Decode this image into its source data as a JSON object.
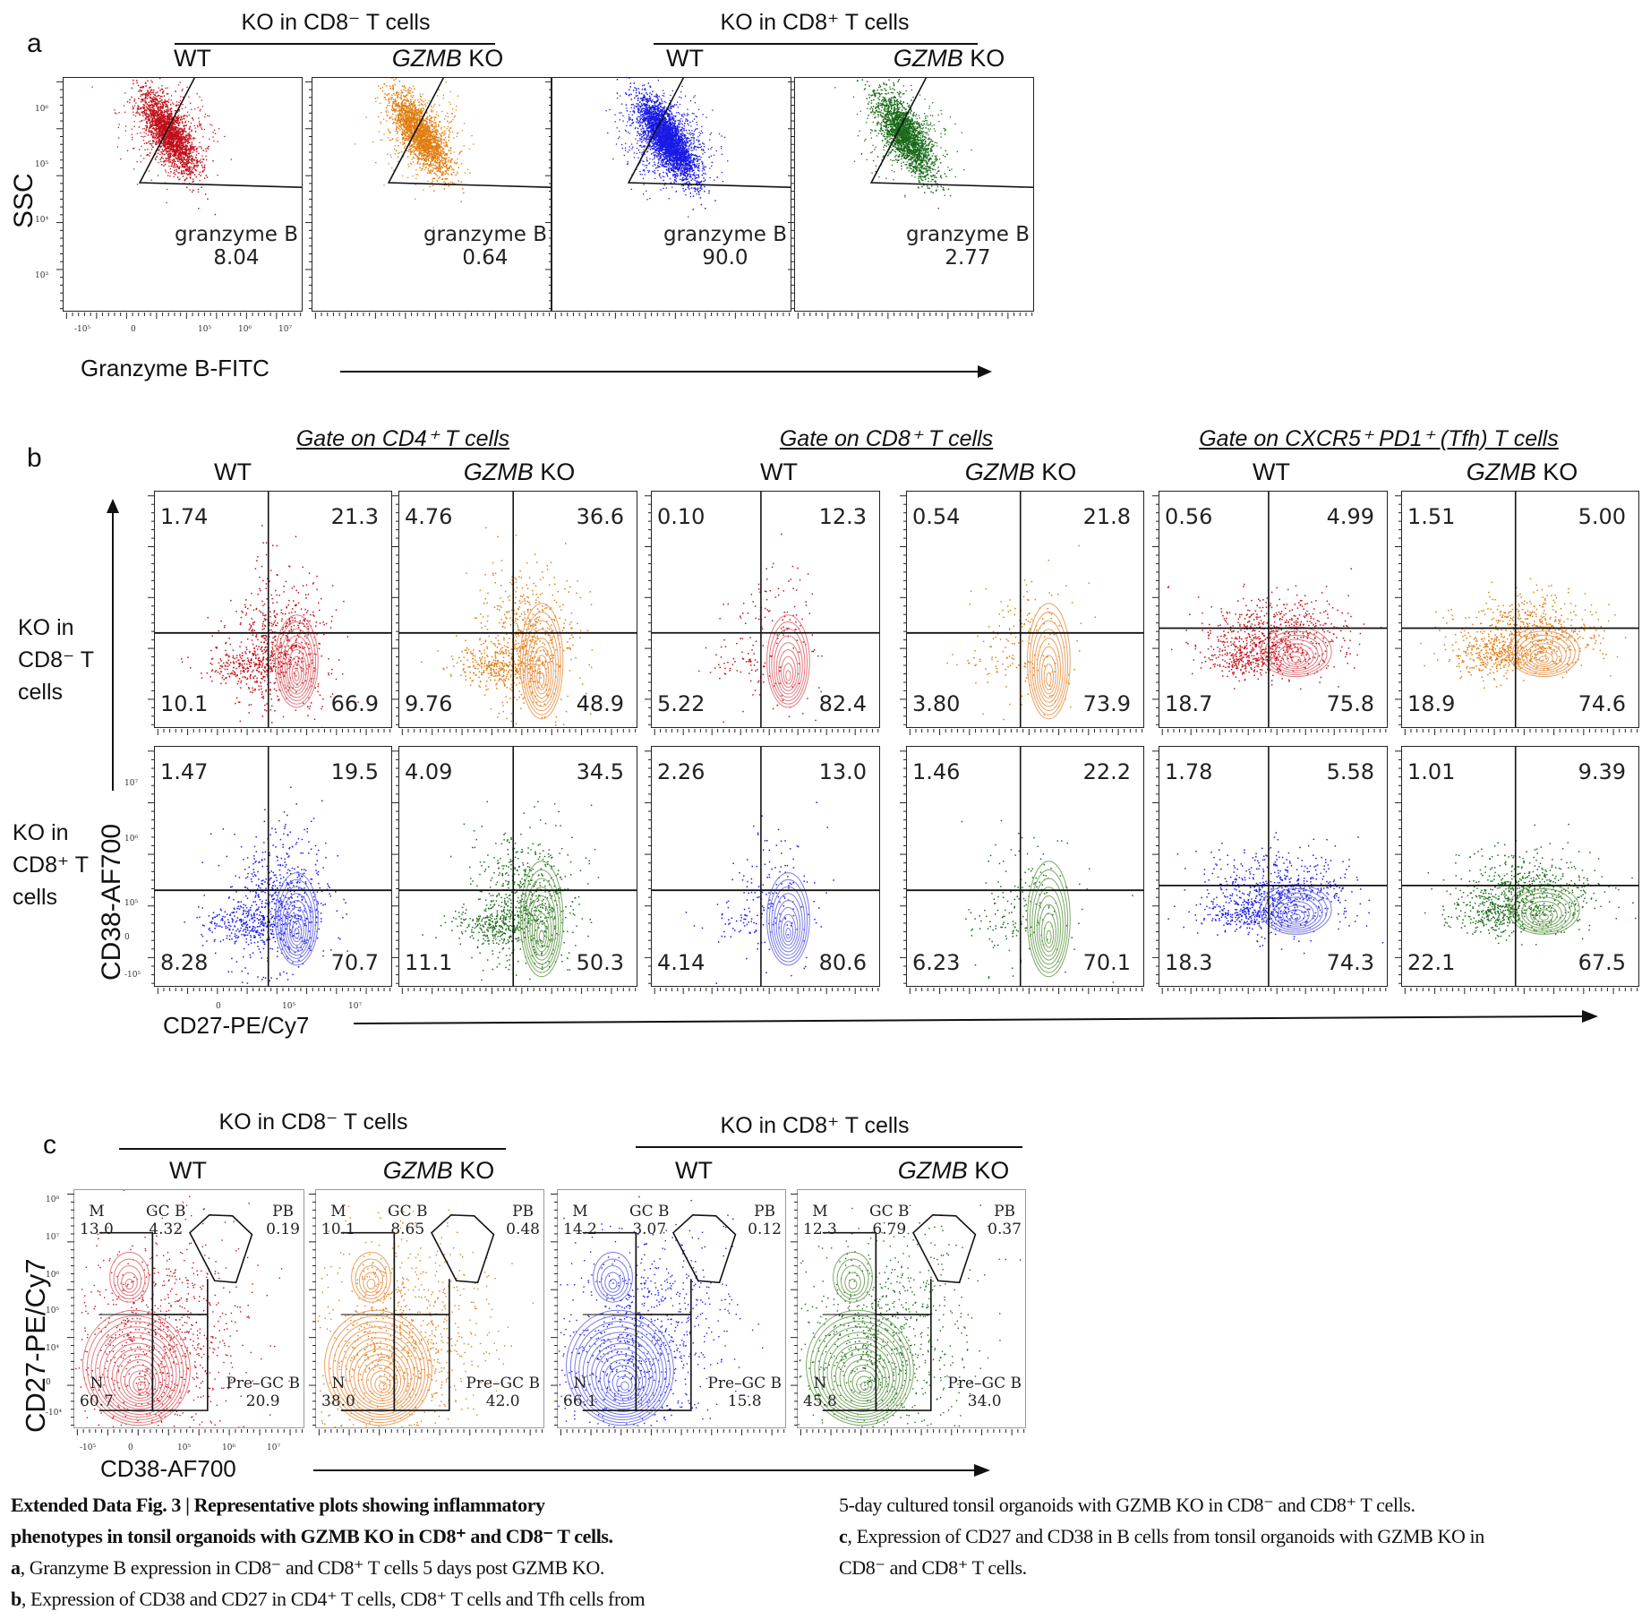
{
  "figure": {
    "caption": {
      "title": "Extended Data Fig. 3 | Representative plots showing inflammatory phenotypes in tonsil organoids with GZMB KO in CD8⁺ and CD8⁻ T cells.",
      "title_line1": "Extended Data Fig. 3 | Representative plots showing inflammatory",
      "title_line2": "phenotypes in tonsil organoids with GZMB KO in CD8⁺ and CD8⁻ T cells.",
      "a_letter": "a",
      "a_text": ", Granzyme B expression in CD8⁻ and CD8⁺ T cells 5 days post GZMB KO.",
      "b_letter": "b",
      "b_text_1": ", Expression of CD38 and CD27 in CD4⁺ T cells, CD8⁺ T cells and Tfh cells from",
      "b_text_2": "5-day cultured tonsil organoids with GZMB KO in CD8⁻ and CD8⁺ T cells.",
      "c_letter": "c",
      "c_text_1": ", Expression of CD27 and CD38 in B cells from tonsil organoids with GZMB KO in",
      "c_text_2": "CD8⁻ and CD8⁺ T cells."
    }
  },
  "colors": {
    "wt_cd8neg": "#c0101a",
    "ko_cd8neg": "#e07d10",
    "wt_cd8pos": "#1a1ae6",
    "ko_cd8pos": "#1a6b1a",
    "wt_cd8neg_contour": "#e07a80",
    "ko_cd8neg_contour": "#eaa060",
    "wt_cd8pos_contour": "#7a7ae8",
    "ko_cd8pos_contour": "#7aa864"
  },
  "panel_a": {
    "letter": "a",
    "groups": [
      {
        "title": "KO in CD8⁻ T cells"
      },
      {
        "title": "KO in CD8⁺ T cells"
      }
    ],
    "conditions": [
      "WT",
      "GZMB",
      "KO",
      "WT",
      "GZMB",
      "KO"
    ],
    "y_axis_label": "SSC",
    "x_axis_label": "Granzyme B-FITC",
    "y_ticks": [
      "10⁶",
      "10⁵",
      "10⁴",
      "10³"
    ],
    "x_ticks": [
      "-10⁵",
      "0",
      "10⁵",
      "10⁶",
      "10⁷"
    ],
    "gate_name": "granzyme B",
    "plots": [
      {
        "group": "KO in CD8- T cells",
        "condition": "WT",
        "gate": "granzyme B",
        "value": "8.04",
        "color": "#c0101a"
      },
      {
        "group": "KO in CD8- T cells",
        "condition": "GZMB KO",
        "gate": "granzyme B",
        "value": "0.64",
        "color": "#e07d10"
      },
      {
        "group": "KO in CD8+ T cells",
        "condition": "WT",
        "gate": "granzyme B",
        "value": "90.0",
        "color": "#1a1ae6"
      },
      {
        "group": "KO in CD8+ T cells",
        "condition": "GZMB KO",
        "gate": "granzyme B",
        "value": "2.77",
        "color": "#1a6b1a"
      }
    ]
  },
  "panel_b": {
    "letter": "b",
    "gates": [
      {
        "title": "Gate on CD4⁺ T cells"
      },
      {
        "title": "Gate on CD8⁺ T cells"
      },
      {
        "title": "Gate on CXCR5⁺ PD1⁺ (Tfh) T cells"
      }
    ],
    "conditions": [
      "WT",
      "GZMB",
      "KO"
    ],
    "row_labels": [
      {
        "line1": "KO in",
        "line2": "CD8⁻ T",
        "line3": "cells"
      },
      {
        "line1": "KO in",
        "line2": "CD8⁺ T",
        "line3": "cells"
      }
    ],
    "y_axis_label": "CD38-AF700",
    "x_axis_label": "CD27-PE/Cy7",
    "y_ticks": [
      "10⁷",
      "10⁶",
      "10⁵",
      "0",
      "-10⁵"
    ],
    "x_ticks": [
      "0",
      "10⁵",
      "10⁷"
    ],
    "rows": [
      {
        "label": "KO in CD8- T cells",
        "plots": [
          {
            "gate": "CD4+",
            "condition": "WT",
            "q": {
              "ul": "1.74",
              "ur": "21.3",
              "ll": "10.1",
              "lr": "66.9"
            }
          },
          {
            "gate": "CD4+",
            "condition": "GZMB KO",
            "q": {
              "ul": "4.76",
              "ur": "36.6",
              "ll": "9.76",
              "lr": "48.9"
            }
          },
          {
            "gate": "CD8+",
            "condition": "WT",
            "q": {
              "ul": "0.10",
              "ur": "12.3",
              "ll": "5.22",
              "lr": "82.4"
            }
          },
          {
            "gate": "CD8+",
            "condition": "GZMB KO",
            "q": {
              "ul": "0.54",
              "ur": "21.8",
              "ll": "3.80",
              "lr": "73.9"
            }
          },
          {
            "gate": "Tfh",
            "condition": "WT",
            "q": {
              "ul": "0.56",
              "ur": "4.99",
              "ll": "18.7",
              "lr": "75.8"
            }
          },
          {
            "gate": "Tfh",
            "condition": "GZMB KO",
            "q": {
              "ul": "1.51",
              "ur": "5.00",
              "ll": "18.9",
              "lr": "74.6"
            }
          }
        ]
      },
      {
        "label": "KO in CD8+ T cells",
        "plots": [
          {
            "gate": "CD4+",
            "condition": "WT",
            "q": {
              "ul": "1.47",
              "ur": "19.5",
              "ll": "8.28",
              "lr": "70.7"
            }
          },
          {
            "gate": "CD4+",
            "condition": "GZMB KO",
            "q": {
              "ul": "4.09",
              "ur": "34.5",
              "ll": "11.1",
              "lr": "50.3"
            }
          },
          {
            "gate": "CD8+",
            "condition": "WT",
            "q": {
              "ul": "2.26",
              "ur": "13.0",
              "ll": "4.14",
              "lr": "80.6"
            }
          },
          {
            "gate": "CD8+",
            "condition": "GZMB KO",
            "q": {
              "ul": "1.46",
              "ur": "22.2",
              "ll": "6.23",
              "lr": "70.1"
            }
          },
          {
            "gate": "Tfh",
            "condition": "WT",
            "q": {
              "ul": "1.78",
              "ur": "5.58",
              "ll": "18.3",
              "lr": "74.3"
            }
          },
          {
            "gate": "Tfh",
            "condition": "GZMB KO",
            "q": {
              "ul": "1.01",
              "ur": "9.39",
              "ll": "22.1",
              "lr": "67.5"
            }
          }
        ]
      }
    ]
  },
  "panel_c": {
    "letter": "c",
    "groups": [
      {
        "title": "KO in CD8⁻ T cells"
      },
      {
        "title": "KO in CD8⁺ T cells"
      }
    ],
    "conditions": [
      "WT",
      "GZMB",
      "KO"
    ],
    "y_axis_label": "CD27-PE/Cy7",
    "x_axis_label": "CD38-AF700",
    "y_ticks": [
      "10⁸",
      "10⁷",
      "10⁶",
      "10⁵",
      "10⁴",
      "0",
      "-10⁴"
    ],
    "x_ticks": [
      "-10⁵",
      "0",
      "10⁵",
      "10⁶",
      "10⁷"
    ],
    "gate_names": {
      "m": "M",
      "gcb": "GC B",
      "pb": "PB",
      "n": "N",
      "pregcb": "Pre–GC B"
    },
    "plots": [
      {
        "group": "KO in CD8- T cells",
        "condition": "WT",
        "m": "13.0",
        "gcb": "4.32",
        "pb": "0.19",
        "n": "60.7",
        "pregcb": "20.9"
      },
      {
        "group": "KO in CD8- T cells",
        "condition": "GZMB KO",
        "m": "10.1",
        "gcb": "8.65",
        "pb": "0.48",
        "n": "38.0",
        "pregcb": "42.0"
      },
      {
        "group": "KO in CD8+ T cells",
        "condition": "WT",
        "m": "14.2",
        "gcb": "3.07",
        "pb": "0.12",
        "n": "66.1",
        "pregcb": "15.8"
      },
      {
        "group": "KO in CD8+ T cells",
        "condition": "GZMB KO",
        "m": "12.3",
        "gcb": "6.79",
        "pb": "0.37",
        "n": "45.8",
        "pregcb": "34.0"
      }
    ]
  },
  "chart_data": [
    {
      "type": "scatter",
      "title": "a: Granzyme B expression",
      "xlabel": "Granzyme B-FITC",
      "ylabel": "SSC",
      "categories": [
        "KO in CD8- WT",
        "KO in CD8- GZMB KO",
        "KO in CD8+ WT",
        "KO in CD8+ GZMB KO"
      ],
      "values": [
        8.04,
        0.64,
        90.0,
        2.77
      ],
      "gate": "granzyme B (%)"
    },
    {
      "type": "scatter",
      "title": "b: CD38 vs CD27 quadrants (%)",
      "xlabel": "CD27-PE/Cy7",
      "ylabel": "CD38-AF700",
      "quadrant_order": [
        "upper-left",
        "upper-right",
        "lower-left",
        "lower-right"
      ],
      "series": [
        {
          "name": "KO in CD8- | CD4+ WT",
          "values": [
            1.74,
            21.3,
            10.1,
            66.9
          ]
        },
        {
          "name": "KO in CD8- | CD4+ GZMB KO",
          "values": [
            4.76,
            36.6,
            9.76,
            48.9
          ]
        },
        {
          "name": "KO in CD8- | CD8+ WT",
          "values": [
            0.1,
            12.3,
            5.22,
            82.4
          ]
        },
        {
          "name": "KO in CD8- | CD8+ GZMB KO",
          "values": [
            0.54,
            21.8,
            3.8,
            73.9
          ]
        },
        {
          "name": "KO in CD8- | Tfh WT",
          "values": [
            0.56,
            4.99,
            18.7,
            75.8
          ]
        },
        {
          "name": "KO in CD8- | Tfh GZMB KO",
          "values": [
            1.51,
            5.0,
            18.9,
            74.6
          ]
        },
        {
          "name": "KO in CD8+ | CD4+ WT",
          "values": [
            1.47,
            19.5,
            8.28,
            70.7
          ]
        },
        {
          "name": "KO in CD8+ | CD4+ GZMB KO",
          "values": [
            4.09,
            34.5,
            11.1,
            50.3
          ]
        },
        {
          "name": "KO in CD8+ | CD8+ WT",
          "values": [
            2.26,
            13.0,
            4.14,
            80.6
          ]
        },
        {
          "name": "KO in CD8+ | CD8+ GZMB KO",
          "values": [
            1.46,
            22.2,
            6.23,
            70.1
          ]
        },
        {
          "name": "KO in CD8+ | Tfh WT",
          "values": [
            1.78,
            5.58,
            18.3,
            74.3
          ]
        },
        {
          "name": "KO in CD8+ | Tfh GZMB KO",
          "values": [
            1.01,
            9.39,
            22.1,
            67.5
          ]
        }
      ]
    },
    {
      "type": "scatter",
      "title": "c: B cell subsets (%)",
      "xlabel": "CD38-AF700",
      "ylabel": "CD27-PE/Cy7",
      "categories": [
        "M",
        "GC B",
        "PB",
        "N",
        "Pre-GC B"
      ],
      "series": [
        {
          "name": "KO in CD8- WT",
          "values": [
            13.0,
            4.32,
            0.19,
            60.7,
            20.9
          ]
        },
        {
          "name": "KO in CD8- GZMB KO",
          "values": [
            10.1,
            8.65,
            0.48,
            38.0,
            42.0
          ]
        },
        {
          "name": "KO in CD8+ WT",
          "values": [
            14.2,
            3.07,
            0.12,
            66.1,
            15.8
          ]
        },
        {
          "name": "KO in CD8+ GZMB KO",
          "values": [
            12.3,
            6.79,
            0.37,
            45.8,
            34.0
          ]
        }
      ]
    }
  ]
}
